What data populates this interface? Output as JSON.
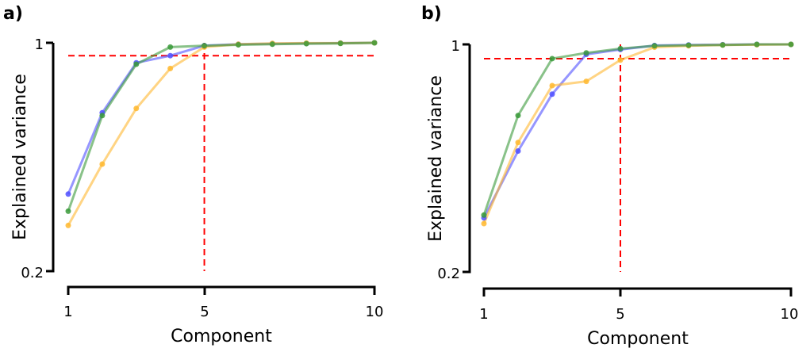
{
  "chart_data": [
    {
      "type": "line",
      "panel_label": "a)",
      "xlabel": "Component",
      "ylabel": "Explained variance",
      "x": [
        1,
        2,
        3,
        4,
        5,
        6,
        7,
        8,
        9,
        10
      ],
      "xticks": [
        1,
        5,
        10
      ],
      "xtick_labels": [
        "1",
        "5",
        "10"
      ],
      "yticks": [
        0.2,
        1
      ],
      "ytick_labels": [
        "0.2",
        "1"
      ],
      "xlim": [
        1,
        10
      ],
      "ylim": [
        0.2,
        1
      ],
      "threshold_y": 0.955,
      "threshold_x": 5,
      "series": [
        {
          "name": "blue",
          "color": "#5050ff",
          "values": [
            0.47,
            0.755,
            0.93,
            0.955,
            0.99,
            0.995,
            0.997,
            0.998,
            0.999,
            1.0
          ]
        },
        {
          "name": "orange",
          "color": "#ffb830",
          "values": [
            0.36,
            0.575,
            0.77,
            0.91,
            0.985,
            0.995,
            0.998,
            0.999,
            0.999,
            1.0
          ]
        },
        {
          "name": "green",
          "color": "#3a9a3a",
          "values": [
            0.41,
            0.745,
            0.925,
            0.985,
            0.99,
            0.993,
            0.995,
            0.997,
            0.998,
            1.0
          ]
        }
      ]
    },
    {
      "type": "line",
      "panel_label": "b)",
      "xlabel": "Component",
      "ylabel": "Explained variance",
      "x": [
        1,
        2,
        3,
        4,
        5,
        6,
        7,
        8,
        9,
        10
      ],
      "xticks": [
        1,
        5,
        10
      ],
      "xtick_labels": [
        "1",
        "5",
        "10"
      ],
      "yticks": [
        0.2,
        1
      ],
      "ytick_labels": [
        "0.2",
        "1"
      ],
      "xlim": [
        1,
        10
      ],
      "ylim": [
        0.2,
        1
      ],
      "threshold_y": 0.95,
      "threshold_x": 5,
      "series": [
        {
          "name": "blue",
          "color": "#5050ff",
          "values": [
            0.39,
            0.625,
            0.825,
            0.965,
            0.982,
            0.996,
            0.998,
            0.999,
            1.0,
            1.0
          ]
        },
        {
          "name": "orange",
          "color": "#ffb830",
          "values": [
            0.37,
            0.655,
            0.855,
            0.87,
            0.945,
            0.99,
            0.995,
            0.998,
            0.999,
            1.0
          ]
        },
        {
          "name": "green",
          "color": "#3a9a3a",
          "values": [
            0.4,
            0.75,
            0.95,
            0.97,
            0.985,
            0.995,
            0.997,
            0.998,
            1.0,
            1.0
          ]
        }
      ]
    }
  ]
}
